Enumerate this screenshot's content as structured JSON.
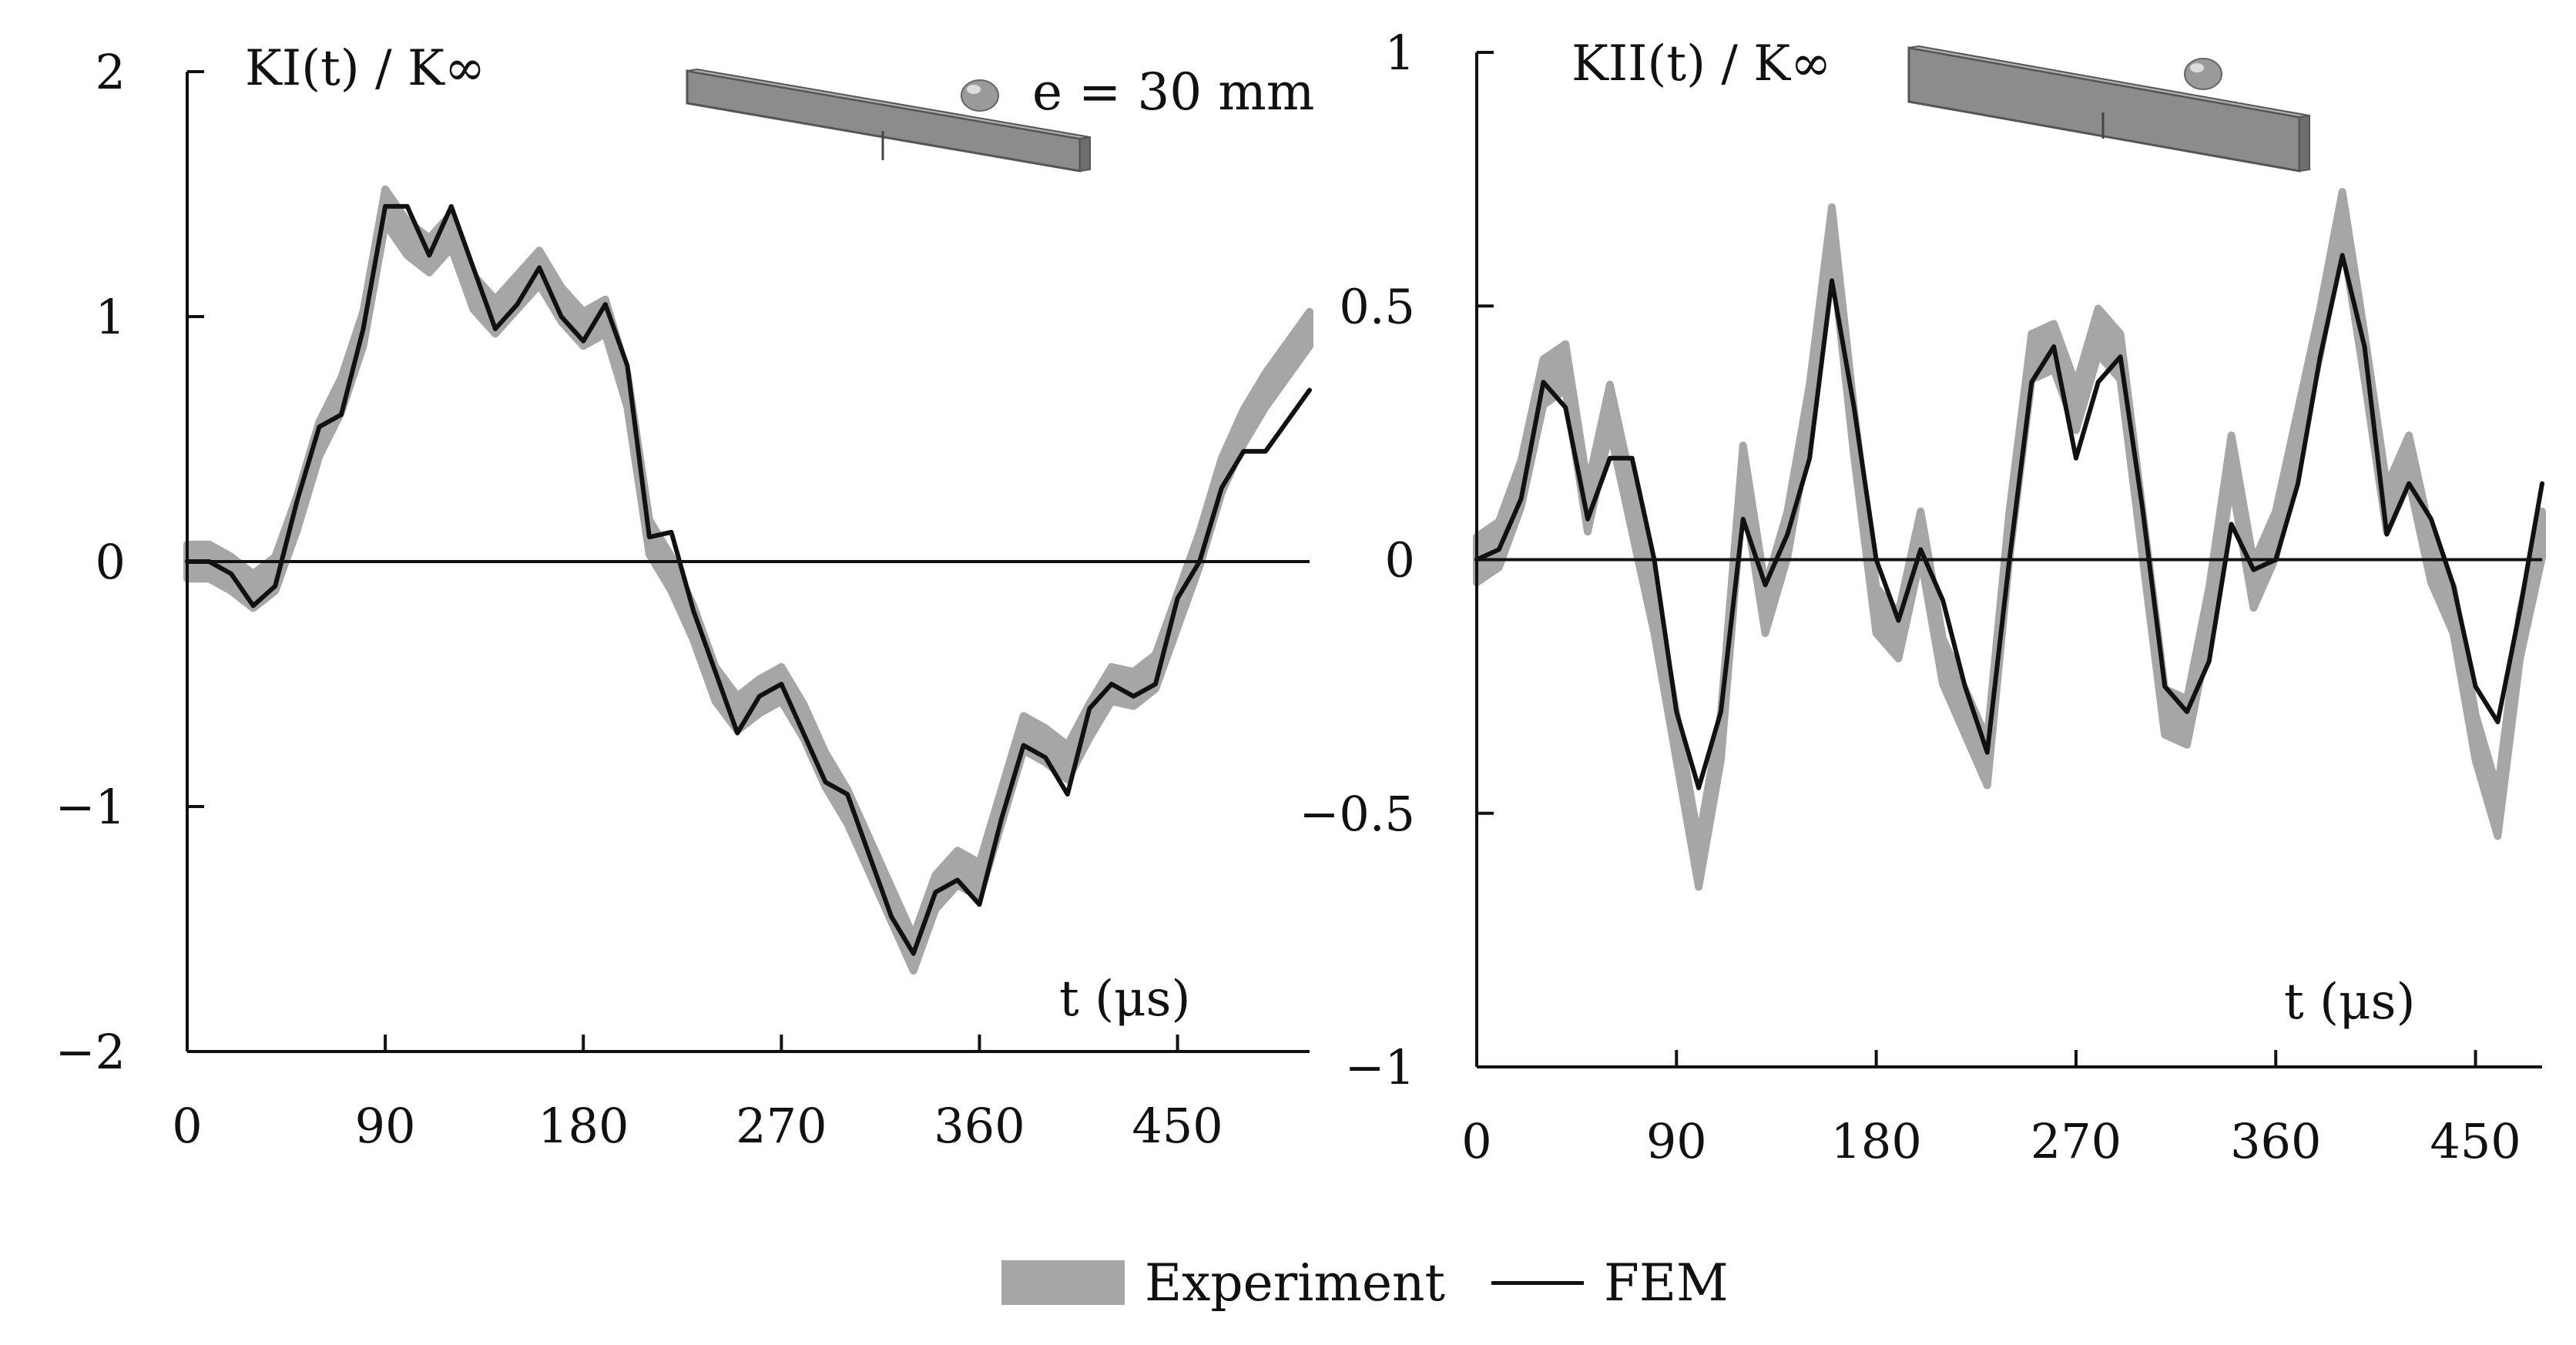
{
  "chart_data": [
    {
      "type": "line",
      "title": "KI(t) / K∞",
      "xlabel": "t (μs)",
      "ylabel": "KI(t) / K∞",
      "xlim": [
        0,
        510
      ],
      "ylim": [
        -2,
        2
      ],
      "xticks": [
        0,
        90,
        180,
        270,
        360,
        450
      ],
      "xtick_labels": [
        "0",
        "90",
        "180",
        "270",
        "360",
        "450"
      ],
      "yticks": [
        2,
        1,
        0,
        -1,
        -2
      ],
      "ytick_labels": [
        "2",
        "1",
        "0",
        "−1",
        "−2"
      ],
      "annotation": "e = 30 mm",
      "series": [
        {
          "name": "FEM",
          "x": [
            0,
            10,
            20,
            30,
            40,
            50,
            60,
            70,
            80,
            90,
            100,
            110,
            120,
            130,
            140,
            150,
            160,
            170,
            180,
            190,
            200,
            210,
            220,
            230,
            240,
            250,
            260,
            270,
            280,
            290,
            300,
            310,
            320,
            330,
            340,
            350,
            360,
            370,
            380,
            390,
            400,
            410,
            420,
            430,
            440,
            450,
            460,
            470,
            480,
            490,
            510
          ],
          "y": [
            0,
            0,
            -0.05,
            -0.18,
            -0.1,
            0.25,
            0.55,
            0.6,
            0.95,
            1.45,
            1.45,
            1.25,
            1.45,
            1.2,
            0.95,
            1.05,
            1.2,
            1.0,
            0.9,
            1.05,
            0.8,
            0.1,
            0.12,
            -0.2,
            -0.45,
            -0.7,
            -0.55,
            -0.5,
            -0.7,
            -0.9,
            -0.95,
            -1.2,
            -1.45,
            -1.6,
            -1.35,
            -1.3,
            -1.4,
            -1.05,
            -0.75,
            -0.8,
            -0.95,
            -0.6,
            -0.5,
            -0.55,
            -0.5,
            -0.15,
            0.0,
            0.3,
            0.45,
            0.45,
            0.7
          ]
        },
        {
          "name": "Experiment",
          "band_width": 0.14,
          "x": [
            0,
            10,
            20,
            30,
            40,
            50,
            60,
            70,
            80,
            90,
            100,
            110,
            120,
            130,
            140,
            150,
            160,
            170,
            180,
            190,
            200,
            210,
            220,
            230,
            240,
            250,
            260,
            270,
            280,
            290,
            300,
            310,
            320,
            330,
            340,
            350,
            360,
            370,
            380,
            390,
            400,
            410,
            420,
            430,
            440,
            450,
            460,
            470,
            480,
            490,
            510
          ],
          "y": [
            0,
            0,
            -0.05,
            -0.12,
            -0.05,
            0.2,
            0.5,
            0.68,
            0.95,
            1.45,
            1.32,
            1.25,
            1.35,
            1.1,
            1.0,
            1.1,
            1.2,
            1.05,
            0.95,
            1.0,
            0.7,
            0.1,
            -0.05,
            -0.25,
            -0.5,
            -0.62,
            -0.55,
            -0.5,
            -0.65,
            -0.85,
            -1.0,
            -1.2,
            -1.4,
            -1.6,
            -1.35,
            -1.25,
            -1.3,
            -1.0,
            -0.7,
            -0.75,
            -0.82,
            -0.65,
            -0.5,
            -0.52,
            -0.45,
            -0.2,
            0.05,
            0.35,
            0.55,
            0.7,
            0.95
          ]
        }
      ]
    },
    {
      "type": "line",
      "title": "KII(t) / K∞",
      "xlabel": "t (μs)",
      "ylabel": "KII(t) / K∞",
      "xlim": [
        0,
        480
      ],
      "ylim": [
        -1,
        1
      ],
      "xticks": [
        0,
        90,
        180,
        270,
        360,
        450
      ],
      "xtick_labels": [
        "0",
        "90",
        "180",
        "270",
        "360",
        "450"
      ],
      "yticks": [
        1,
        0.5,
        0,
        -0.5,
        -1
      ],
      "ytick_labels": [
        "1",
        "0.5",
        "0",
        "−0.5",
        "−1"
      ],
      "series": [
        {
          "name": "FEM",
          "x": [
            0,
            10,
            20,
            30,
            40,
            50,
            60,
            70,
            80,
            90,
            100,
            110,
            120,
            130,
            140,
            150,
            160,
            170,
            180,
            190,
            200,
            210,
            220,
            230,
            240,
            250,
            260,
            270,
            280,
            290,
            300,
            310,
            320,
            330,
            340,
            350,
            360,
            370,
            380,
            390,
            400,
            410,
            420,
            430,
            440,
            450,
            460,
            470,
            480
          ],
          "y": [
            0,
            0.02,
            0.12,
            0.35,
            0.3,
            0.08,
            0.2,
            0.2,
            0.0,
            -0.3,
            -0.45,
            -0.3,
            0.08,
            -0.05,
            0.05,
            0.2,
            0.55,
            0.3,
            0.0,
            -0.12,
            0.02,
            -0.08,
            -0.25,
            -0.38,
            0.0,
            0.35,
            0.42,
            0.2,
            0.35,
            0.4,
            0.1,
            -0.25,
            -0.3,
            -0.2,
            0.07,
            -0.02,
            0.0,
            0.15,
            0.4,
            0.6,
            0.42,
            0.05,
            0.15,
            0.08,
            -0.05,
            -0.25,
            -0.32,
            -0.1,
            0.15
          ]
        },
        {
          "name": "Experiment",
          "band_width": 0.09,
          "x": [
            0,
            10,
            20,
            30,
            40,
            50,
            60,
            70,
            80,
            90,
            100,
            110,
            120,
            130,
            140,
            150,
            160,
            170,
            180,
            190,
            200,
            210,
            220,
            230,
            240,
            250,
            260,
            270,
            280,
            290,
            300,
            310,
            320,
            330,
            340,
            350,
            360,
            370,
            380,
            390,
            400,
            410,
            420,
            430,
            440,
            450,
            460,
            470,
            480
          ],
          "y": [
            0,
            0.03,
            0.15,
            0.35,
            0.38,
            0.1,
            0.3,
            0.1,
            -0.1,
            -0.35,
            -0.6,
            -0.35,
            0.18,
            -0.1,
            0.05,
            0.3,
            0.65,
            0.25,
            -0.1,
            -0.15,
            0.05,
            -0.2,
            -0.3,
            -0.4,
            0.05,
            0.4,
            0.42,
            0.3,
            0.45,
            0.4,
            0.05,
            -0.3,
            -0.32,
            -0.1,
            0.2,
            -0.05,
            0.05,
            0.25,
            0.45,
            0.68,
            0.4,
            0.1,
            0.2,
            0.0,
            -0.1,
            -0.35,
            -0.5,
            -0.15,
            0.05
          ]
        }
      ]
    }
  ],
  "legend": {
    "experiment_label": "Experiment",
    "fem_label": "FEM"
  },
  "colors": {
    "experiment": "#a6a6a6",
    "fem": "#111111",
    "axis": "#111111",
    "beam": "#8c8c8c"
  }
}
